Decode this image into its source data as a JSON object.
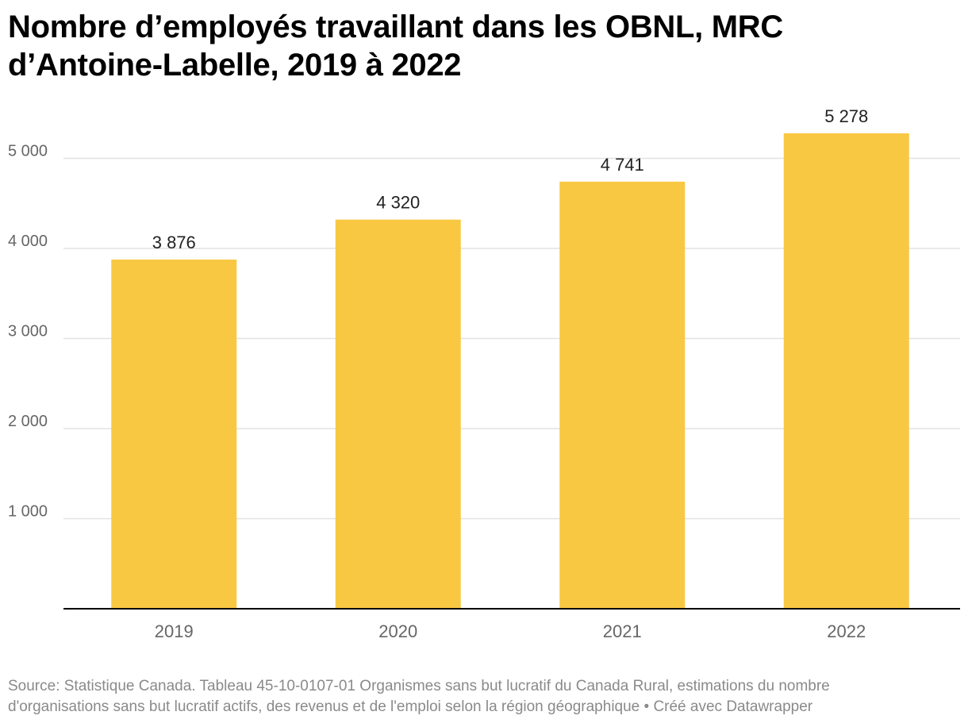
{
  "title_lines": [
    "Nombre d’employés travaillant dans les OBNL, MRC",
    "d’Antoine-Labelle, 2019 à 2022"
  ],
  "source_lines": [
    "Source: Statistique Canada. Tableau 45-10-0107-01 Organismes sans but lucratif du Canada Rural, estimations du nombre",
    "d'organisations sans but lucratif actifs, des revenus et de l'emploi selon la région géographique • Créé avec Datawrapper"
  ],
  "colors": {
    "bar": "#f9c843",
    "grid": "#e2e2e2",
    "axis": "#000000",
    "tick_text": "#666666"
  },
  "chart_data": {
    "type": "bar",
    "categories": [
      "2019",
      "2020",
      "2021",
      "2022"
    ],
    "values": [
      3876,
      4320,
      4741,
      5278
    ],
    "value_labels": [
      "3 876",
      "4 320",
      "4 741",
      "5 278"
    ],
    "yticks": [
      1000,
      2000,
      3000,
      4000,
      5000
    ],
    "ytick_labels": [
      "1 000",
      "2 000",
      "3 000",
      "4 000",
      "5 000"
    ],
    "ylim": [
      0,
      5500
    ],
    "grid": true,
    "title": "Nombre d’employés travaillant dans les OBNL, MRC d’Antoine-Labelle, 2019 à 2022",
    "xlabel": "",
    "ylabel": ""
  }
}
